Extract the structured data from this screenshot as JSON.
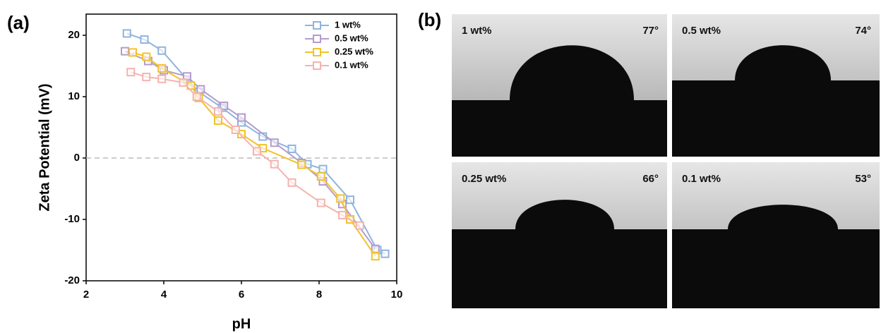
{
  "panel_labels": [
    "(a)",
    "(b)"
  ],
  "chart_data": {
    "type": "line",
    "xlabel": "pH",
    "ylabel": "Zeta Potential (mV)",
    "xlim": [
      2,
      10
    ],
    "ylim": [
      -20,
      20
    ],
    "xticks": [
      2,
      4,
      6,
      8,
      10
    ],
    "yticks": [
      -20,
      -10,
      0,
      10,
      20
    ],
    "hline": 0,
    "legend": "upper right",
    "series": [
      {
        "name": "1 wt%",
        "color": "#8fb4de",
        "x": [
          3.05,
          3.5,
          3.95,
          4.6,
          4.9,
          5.5,
          6.0,
          6.55,
          7.3,
          7.7,
          8.1,
          8.8,
          9.5,
          9.7
        ],
        "values": [
          20.3,
          19.3,
          17.5,
          12.8,
          10.8,
          8.2,
          5.8,
          3.5,
          1.5,
          -1,
          -1.8,
          -6.8,
          -15,
          -15.6
        ]
      },
      {
        "name": "0.5 wt%",
        "color": "#b49bcc",
        "x": [
          3.0,
          3.6,
          4.0,
          4.6,
          4.95,
          5.55,
          6.0,
          6.85,
          7.55,
          8.1,
          8.6,
          9.45
        ],
        "values": [
          17.4,
          15.8,
          14.3,
          13.3,
          11.2,
          8.5,
          6.6,
          2.5,
          -0.8,
          -3.8,
          -7.5,
          -14.8
        ]
      },
      {
        "name": "0.25 wt%",
        "color": "#f2c22b",
        "x": [
          3.2,
          3.55,
          3.95,
          4.7,
          4.9,
          5.4,
          6.0,
          6.55,
          7.55,
          8.05,
          8.55,
          8.8,
          9.45
        ],
        "values": [
          17.2,
          16.5,
          14.6,
          11.8,
          9.8,
          6.1,
          3.9,
          1.6,
          -1.1,
          -3,
          -6.6,
          -10,
          -16
        ]
      },
      {
        "name": "0.1 wt%",
        "color": "#f4b3ae",
        "x": [
          3.15,
          3.55,
          3.95,
          4.5,
          4.85,
          5.4,
          5.85,
          6.4,
          6.85,
          7.3,
          8.05,
          8.6,
          9.05
        ],
        "values": [
          14,
          13.2,
          12.9,
          12.3,
          10,
          7.6,
          4.6,
          1.1,
          -1,
          -4,
          -7.3,
          -9.3,
          -11
        ]
      }
    ]
  },
  "photos": [
    {
      "label": "1 wt%",
      "angle": "77°"
    },
    {
      "label": "0.5 wt%",
      "angle": "74°"
    },
    {
      "label": "0.25 wt%",
      "angle": "66°"
    },
    {
      "label": "0.1 wt%",
      "angle": "53°"
    }
  ]
}
